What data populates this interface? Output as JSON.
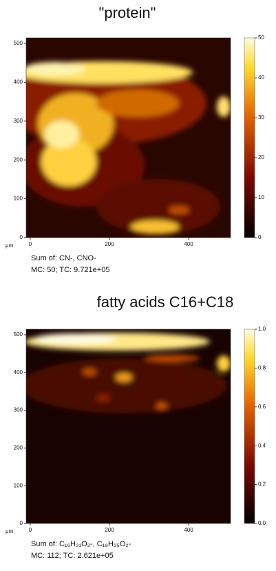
{
  "panels": [
    {
      "title": "\"protein\"",
      "unit": "μm",
      "yticks": [
        "0",
        "100",
        "200",
        "300",
        "400",
        "500"
      ],
      "xticks": [
        "0",
        "200",
        "400"
      ],
      "cbticks": [
        "0",
        "10",
        "20",
        "30",
        "40",
        "50"
      ],
      "caption": [
        "Sum of: CN-, CNO-",
        "MC:    50; TC: 9.721e+05"
      ]
    },
    {
      "title": "fatty acids C16+C18",
      "unit": "μm",
      "yticks": [
        "0",
        "100",
        "200",
        "300",
        "400",
        "500"
      ],
      "xticks": [
        "0",
        "200",
        "400"
      ],
      "cbticks": [
        "0.0",
        "0.2",
        "0.4",
        "0.6",
        "0.8",
        "1.0"
      ],
      "caption": [
        "Sum of: C₁₆H₃₁O₂-, C₁₈H₃₅O₂-",
        "MC:    112; TC: 2.621e+05"
      ]
    }
  ]
}
